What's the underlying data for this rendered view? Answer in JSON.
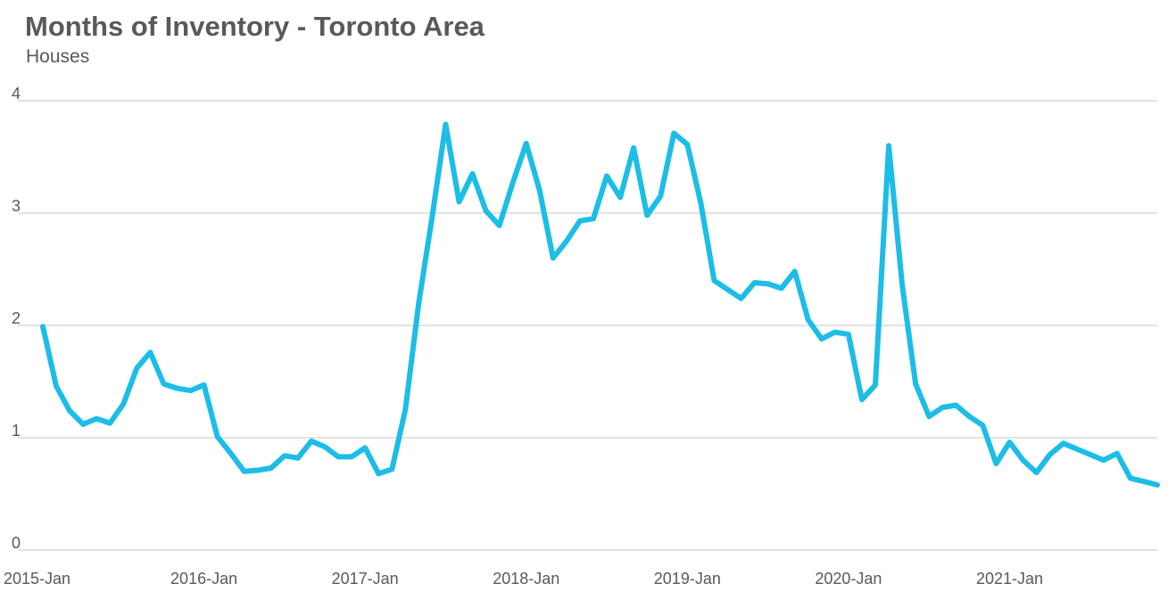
{
  "chart_data": {
    "type": "line",
    "title": "Months of Inventory - Toronto Area",
    "subtitle": "Houses",
    "xlabel": "",
    "ylabel": "",
    "ylim": [
      0,
      4
    ],
    "yticks": [
      0,
      1,
      2,
      3,
      4
    ],
    "grid": true,
    "legend": "none",
    "x_tick_labels": [
      "2015-Jan",
      "2016-Jan",
      "2017-Jan",
      "2018-Jan",
      "2019-Jan",
      "2020-Jan",
      "2021-Jan"
    ],
    "x_start": "2015-01",
    "x_end": "2021-12",
    "line_color": "#1cbde6",
    "series": [
      {
        "x": [
          "2015-01",
          "2015-02",
          "2015-03",
          "2015-04",
          "2015-05",
          "2015-06",
          "2015-07",
          "2015-08",
          "2015-09",
          "2015-10",
          "2015-11",
          "2015-12",
          "2016-01",
          "2016-02",
          "2016-03",
          "2016-04",
          "2016-05",
          "2016-06",
          "2016-07",
          "2016-08",
          "2016-09",
          "2016-10",
          "2016-11",
          "2016-12",
          "2017-01",
          "2017-02",
          "2017-03",
          "2017-04",
          "2017-05",
          "2017-06",
          "2017-07",
          "2017-08",
          "2017-09",
          "2017-10",
          "2017-11",
          "2017-12",
          "2018-01",
          "2018-02",
          "2018-03",
          "2018-04",
          "2018-05",
          "2018-06",
          "2018-07",
          "2018-08",
          "2018-09",
          "2018-10",
          "2018-11",
          "2018-12",
          "2019-01",
          "2019-02",
          "2019-03",
          "2019-04",
          "2019-05",
          "2019-06",
          "2019-07",
          "2019-08",
          "2019-09",
          "2019-10",
          "2019-11",
          "2019-12",
          "2020-01",
          "2020-02",
          "2020-03",
          "2020-04",
          "2020-05",
          "2020-06",
          "2020-07",
          "2020-08",
          "2020-09",
          "2020-10",
          "2020-11",
          "2020-12",
          "2021-01",
          "2021-02",
          "2021-03",
          "2021-04",
          "2021-05",
          "2021-06",
          "2021-07",
          "2021-08",
          "2021-09",
          "2021-10",
          "2021-11",
          "2021-12"
        ],
        "values": [
          1.99,
          1.46,
          1.24,
          1.12,
          1.17,
          1.13,
          1.3,
          1.62,
          1.76,
          1.48,
          1.44,
          1.42,
          1.47,
          1.01,
          0.86,
          0.7,
          0.71,
          0.73,
          0.84,
          0.82,
          0.97,
          0.92,
          0.83,
          0.83,
          0.91,
          0.68,
          0.72,
          1.25,
          2.2,
          2.97,
          3.79,
          3.1,
          3.35,
          3.02,
          2.89,
          3.27,
          3.62,
          3.2,
          2.6,
          2.75,
          2.93,
          2.95,
          3.33,
          3.14,
          3.58,
          2.98,
          3.15,
          3.71,
          3.61,
          3.09,
          2.4,
          2.32,
          2.24,
          2.38,
          2.37,
          2.33,
          2.48,
          2.05,
          1.88,
          1.94,
          1.92,
          1.34,
          1.47,
          3.6,
          2.36,
          1.48,
          1.19,
          1.27,
          1.29,
          1.19,
          1.11,
          0.77,
          0.96,
          0.8,
          0.69,
          0.85,
          0.95,
          0.9,
          0.85,
          0.8,
          0.86,
          0.64,
          0.61,
          0.58
        ]
      }
    ]
  }
}
